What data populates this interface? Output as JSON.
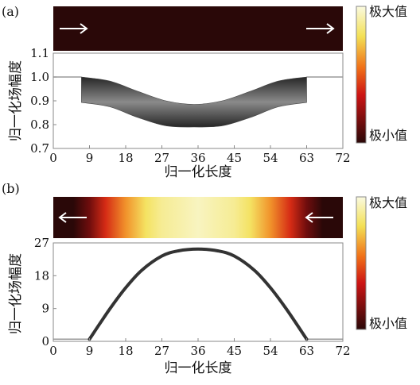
{
  "colors": {
    "map_dark": "#2a0808",
    "map_red": "#cc1414",
    "map_orange": "#f07018",
    "map_yellow": "#f3e055",
    "map_pale": "#fafae0",
    "band_dark": "#262626",
    "band_light": "#8a8a8a",
    "curve": "#333333",
    "frame": "#888888",
    "baseline": "#9a9a9a"
  },
  "icons": {
    "arrow_right": "arrow-right-icon",
    "arrow_left": "arrow-left-icon"
  },
  "chart_data": [
    {
      "panel_label": "(a)",
      "type": "area",
      "xlabel": "归一化长度",
      "ylabel": "归一化场幅度",
      "xlim": [
        0,
        72
      ],
      "ylim": [
        0.7,
        1.1
      ],
      "xticks": [
        "0",
        "9",
        "18",
        "27",
        "36",
        "45",
        "54",
        "63",
        "72"
      ],
      "yticks": [
        "0.7",
        "0.8",
        "0.9",
        "1.0",
        "1.1"
      ],
      "grid": false,
      "band_start": 7,
      "band_end": 63,
      "baseline_value": 1.0,
      "series": [
        {
          "x": [
            7,
            14,
            21,
            28,
            35,
            42,
            49,
            56,
            63
          ],
          "upper": [
            1.0,
            0.983,
            0.94,
            0.9,
            0.885,
            0.9,
            0.94,
            0.983,
            1.0
          ],
          "lower": [
            0.893,
            0.875,
            0.83,
            0.795,
            0.79,
            0.795,
            0.83,
            0.875,
            0.893
          ]
        }
      ],
      "direction": "right",
      "intensity_map": {
        "profile": "uniform",
        "stops": []
      },
      "colorbar": {
        "max_label": "极大值",
        "min_label": "极小值"
      }
    },
    {
      "panel_label": "(b)",
      "type": "line",
      "xlabel": "归一化长度",
      "ylabel": "归一化场幅度",
      "xlim": [
        0,
        72
      ],
      "ylim": [
        0,
        27
      ],
      "xticks": [
        "0",
        "9",
        "18",
        "27",
        "36",
        "45",
        "54",
        "63",
        "72"
      ],
      "yticks": [
        "0",
        "9",
        "18",
        "27"
      ],
      "grid": false,
      "baseline_value": 0.6,
      "series": [
        {
          "x": [
            0,
            9,
            14,
            18,
            22,
            27,
            31,
            36,
            41,
            45,
            50,
            54,
            58,
            63,
            72
          ],
          "y": [
            0.6,
            0.6,
            8.8,
            14.7,
            19.5,
            23.4,
            24.8,
            25.3,
            24.8,
            23.4,
            19.5,
            14.7,
            8.8,
            0.6,
            0.6
          ]
        }
      ],
      "direction": "left",
      "intensity_map": {
        "profile": "sweep",
        "stops": [
          {
            "x": 0,
            "t": 0
          },
          {
            "x": 5,
            "t": 0
          },
          {
            "x": 9,
            "t": 0.15
          },
          {
            "x": 13,
            "t": 0.4
          },
          {
            "x": 18,
            "t": 0.62
          },
          {
            "x": 23,
            "t": 0.8
          },
          {
            "x": 27,
            "t": 0.88
          },
          {
            "x": 36,
            "t": 0.95
          },
          {
            "x": 45,
            "t": 0.88
          },
          {
            "x": 49,
            "t": 0.8
          },
          {
            "x": 54,
            "t": 0.62
          },
          {
            "x": 59,
            "t": 0.4
          },
          {
            "x": 63,
            "t": 0.15
          },
          {
            "x": 67,
            "t": 0
          },
          {
            "x": 72,
            "t": 0
          }
        ]
      },
      "colorbar": {
        "max_label": "极大值",
        "min_label": "极小值"
      }
    }
  ]
}
